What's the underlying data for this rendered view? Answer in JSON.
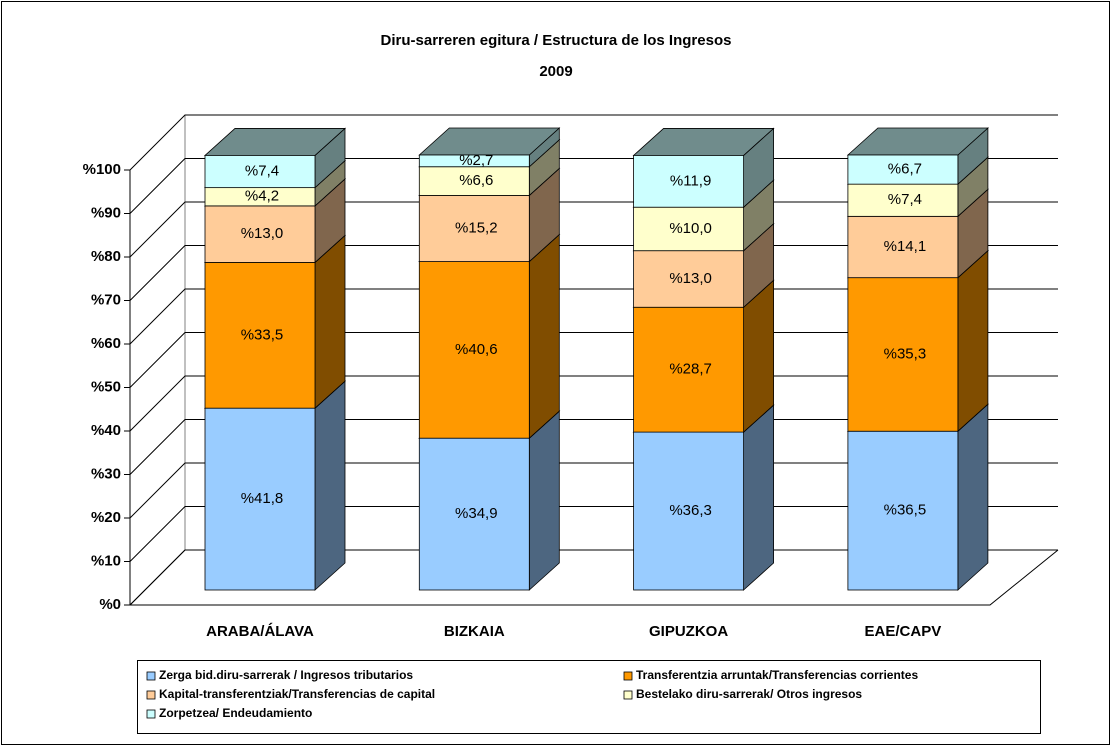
{
  "chart_data": {
    "type": "stacked_bar_3d",
    "title": "Diru-sarreren egitura / Estructura de los Ingresos",
    "subtitle": "2009",
    "categories": [
      "ARABA/ÁLAVA",
      "BIZKAIA",
      "GIPUZKOA",
      "EAE/CAPV"
    ],
    "series": [
      {
        "name": "Zerga bid.diru-sarrerak / Ingresos tributarios",
        "color": "#99ccff",
        "values": [
          41.8,
          34.9,
          36.3,
          36.5
        ],
        "value_labels": [
          "%41,8",
          "%34,9",
          "%36,3",
          "%36,5"
        ]
      },
      {
        "name": "Transferentzia arruntak/Transferencias corrientes",
        "color": "#ff9900",
        "values": [
          33.5,
          40.6,
          28.7,
          35.3
        ],
        "value_labels": [
          "%33,5",
          "%40,6",
          "%28,7",
          "%35,3"
        ]
      },
      {
        "name": "Kapital-transferentziak/Transferencias de capital",
        "color": "#ffcc99",
        "values": [
          13.0,
          15.2,
          13.0,
          14.1
        ],
        "value_labels": [
          "%13,0",
          "%15,2",
          "%13,0",
          "%14,1"
        ]
      },
      {
        "name": "Bestelako diru-sarrerak/ Otros ingresos",
        "color": "#ffffcc",
        "values": [
          4.2,
          6.6,
          10.0,
          7.4
        ],
        "value_labels": [
          "%4,2",
          "%6,6",
          "%10,0",
          "%7,4"
        ]
      },
      {
        "name": "Zorpetzea/ Endeudamiento",
        "color": "#ccffff",
        "values": [
          7.4,
          2.7,
          11.9,
          6.7
        ],
        "value_labels": [
          "%7,4",
          "%2,7",
          "%11,9",
          "%6,7"
        ]
      }
    ],
    "ylim": [
      0,
      100
    ],
    "yticks": [
      {
        "value": 0,
        "label": "%0"
      },
      {
        "value": 10,
        "label": "%10"
      },
      {
        "value": 20,
        "label": "%20"
      },
      {
        "value": 30,
        "label": "%30"
      },
      {
        "value": 40,
        "label": "%40"
      },
      {
        "value": 50,
        "label": "%50"
      },
      {
        "value": 60,
        "label": "%60"
      },
      {
        "value": 70,
        "label": "%70"
      },
      {
        "value": 80,
        "label": "%80"
      },
      {
        "value": 90,
        "label": "%90"
      },
      {
        "value": 100,
        "label": "%100"
      }
    ],
    "grid": true,
    "legend": "bottom"
  }
}
